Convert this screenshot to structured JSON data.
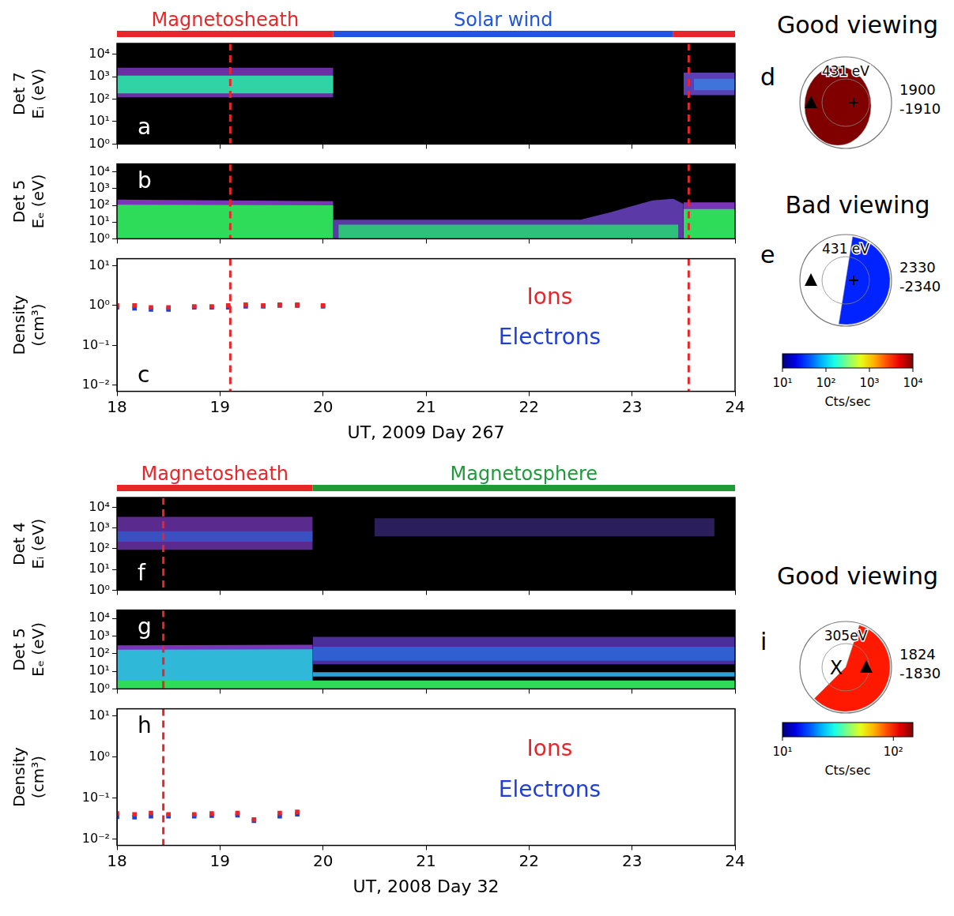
{
  "chart_data": [
    {
      "panel": "a",
      "type": "spectrogram",
      "ylabel": [
        "Det 7",
        "Eᵢ (eV)"
      ],
      "log": "y",
      "grid": false,
      "tick_labels": "y",
      "xlim": [
        18,
        24
      ],
      "xticks": [
        18,
        19,
        20,
        21,
        22,
        23,
        24
      ],
      "ylim": [
        1,
        30000
      ],
      "yticks": [
        {
          "value": 1,
          "label": "10⁰"
        },
        {
          "value": 10,
          "label": "10¹"
        },
        {
          "value": 100,
          "label": "10²"
        },
        {
          "value": 1000,
          "label": "10³"
        },
        {
          "value": 10000,
          "label": "10⁴"
        }
      ],
      "regions": [
        {
          "label": "Magnetosheath",
          "start": 18,
          "end": 20.1,
          "color": "#e8262a"
        },
        {
          "label": "Solar wind",
          "start": 20.1,
          "end": 23.4,
          "color": "#1f55e0"
        },
        {
          "label": null,
          "start": 23.4,
          "end": 24,
          "color": "#e8262a"
        }
      ],
      "vlines": [
        19.1,
        23.55
      ],
      "bands": [
        {
          "x": [
            18,
            20.1
          ],
          "low": [
            120,
            120
          ],
          "high": [
            2500,
            2500
          ],
          "color": "#6b2fa3"
        },
        {
          "x": [
            18,
            20.1
          ],
          "low": [
            180,
            180
          ],
          "high": [
            1100,
            1100
          ],
          "color": "#2fd3a5"
        },
        {
          "x": [
            23.5,
            24
          ],
          "low": [
            150,
            150
          ],
          "high": [
            1500,
            1500
          ],
          "color": "#5a3fb5"
        },
        {
          "x": [
            23.6,
            24
          ],
          "low": [
            250,
            250
          ],
          "high": [
            800,
            800
          ],
          "color": "#3f74d8"
        }
      ]
    },
    {
      "panel": "b",
      "type": "spectrogram",
      "ylabel": [
        "Det 5",
        "Eₑ (eV)"
      ],
      "log": "y",
      "grid": false,
      "tick_labels": "y",
      "xlim": [
        18,
        24
      ],
      "xticks": [
        18,
        19,
        20,
        21,
        22,
        23,
        24
      ],
      "ylim": [
        1,
        30000
      ],
      "yticks": [
        {
          "value": 1,
          "label": "10⁰"
        },
        {
          "value": 10,
          "label": "10¹"
        },
        {
          "value": 100,
          "label": "10²"
        },
        {
          "value": 1000,
          "label": "10³"
        },
        {
          "value": 10000,
          "label": "10⁴"
        }
      ],
      "vlines": [
        19.1,
        23.55
      ],
      "bands": [
        {
          "x": [
            18,
            20.1
          ],
          "low": [
            1,
            1
          ],
          "high": [
            220,
            180
          ],
          "color": "#7b35b8"
        },
        {
          "x": [
            18,
            20.1
          ],
          "low": [
            1,
            1
          ],
          "high": [
            110,
            100
          ],
          "color": "#2fdc5a"
        },
        {
          "x": [
            20.1,
            22.5,
            22.8,
            23.0,
            23.2,
            23.4,
            23.5
          ],
          "low": [
            1,
            1,
            1,
            1,
            1,
            1,
            1
          ],
          "high": [
            14,
            14,
            40,
            90,
            200,
            250,
            120
          ],
          "color": "#5b3aa8"
        },
        {
          "x": [
            20.15,
            23.45
          ],
          "low": [
            1,
            1
          ],
          "high": [
            7,
            7
          ],
          "color": "#2fc07a"
        },
        {
          "x": [
            23.5,
            24
          ],
          "low": [
            1,
            1
          ],
          "high": [
            150,
            150
          ],
          "color": "#7b35b8"
        },
        {
          "x": [
            23.5,
            24
          ],
          "low": [
            1,
            1
          ],
          "high": [
            60,
            60
          ],
          "color": "#2fdc5a"
        }
      ]
    },
    {
      "panel": "c",
      "type": "scatter",
      "ylabel": [
        "Density",
        "(cm³)"
      ],
      "xlabel": "UT, 2009 Day 267",
      "log": "y",
      "grid": false,
      "legend": "center",
      "marker": "square",
      "xlim": [
        18,
        24
      ],
      "xticks": [
        18,
        19,
        20,
        21,
        22,
        23,
        24
      ],
      "ylim": [
        0.007,
        15
      ],
      "yticks": [
        {
          "value": 0.01,
          "label": "10⁻²"
        },
        {
          "value": 0.1,
          "label": "10⁻¹"
        },
        {
          "value": 1,
          "label": "10⁰"
        },
        {
          "value": 10,
          "label": "10¹"
        }
      ],
      "vlines": [
        19.1,
        23.55
      ],
      "series": [
        {
          "name": "Ions",
          "color": "#e8262a",
          "x": [
            18.0,
            18.17,
            18.33,
            18.5,
            18.75,
            18.92,
            19.08,
            19.25,
            19.42,
            19.58,
            19.75,
            20.0
          ],
          "values": [
            1.0,
            1.0,
            0.9,
            0.9,
            0.95,
            0.95,
            1.0,
            1.05,
            1.0,
            1.05,
            1.05,
            1.0
          ]
        },
        {
          "name": "Electrons",
          "color": "#1f3fd6",
          "x": [
            18.0,
            18.17,
            18.33,
            18.5,
            18.75,
            18.92,
            19.08,
            19.25,
            19.42,
            19.58,
            19.75,
            20.0
          ],
          "values": [
            0.9,
            0.85,
            0.8,
            0.8,
            0.9,
            0.9,
            0.9,
            0.95,
            0.95,
            1.0,
            1.0,
            0.95
          ]
        }
      ]
    },
    {
      "panel": "f",
      "type": "spectrogram",
      "ylabel": [
        "Det 4",
        "Eᵢ (eV)"
      ],
      "log": "y",
      "grid": false,
      "tick_labels": "y",
      "xlim": [
        18,
        24
      ],
      "xticks": [
        18,
        19,
        20,
        21,
        22,
        23,
        24
      ],
      "ylim": [
        1,
        30000
      ],
      "yticks": [
        {
          "value": 1,
          "label": "10⁰"
        },
        {
          "value": 10,
          "label": "10¹"
        },
        {
          "value": 100,
          "label": "10²"
        },
        {
          "value": 1000,
          "label": "10³"
        },
        {
          "value": 10000,
          "label": "10⁴"
        }
      ],
      "regions": [
        {
          "label": "Magnetosheath",
          "start": 18,
          "end": 19.9,
          "color": "#e8262a"
        },
        {
          "label": "Magnetosphere",
          "start": 19.9,
          "end": 24,
          "color": "#1f9a3a"
        }
      ],
      "vlines": [
        18.45
      ],
      "bands": [
        {
          "x": [
            18,
            19.9
          ],
          "low": [
            90,
            90
          ],
          "high": [
            3500,
            3500
          ],
          "color": "#5b2a8f"
        },
        {
          "x": [
            18,
            19.9
          ],
          "low": [
            220,
            220
          ],
          "high": [
            700,
            700
          ],
          "color": "#3a4fc0"
        },
        {
          "x": [
            20.5,
            23.8
          ],
          "low": [
            400,
            400
          ],
          "high": [
            3000,
            3000
          ],
          "color": "#2a1f5a"
        }
      ]
    },
    {
      "panel": "g",
      "type": "spectrogram",
      "ylabel": [
        "Det 5",
        "Eₑ (eV)"
      ],
      "log": "y",
      "grid": false,
      "tick_labels": "y",
      "xlim": [
        18,
        24
      ],
      "xticks": [
        18,
        19,
        20,
        21,
        22,
        23,
        24
      ],
      "ylim": [
        1,
        30000
      ],
      "yticks": [
        {
          "value": 1,
          "label": "10⁰"
        },
        {
          "value": 10,
          "label": "10¹"
        },
        {
          "value": 100,
          "label": "10²"
        },
        {
          "value": 1000,
          "label": "10³"
        },
        {
          "value": 10000,
          "label": "10⁴"
        }
      ],
      "vlines": [
        18.45
      ],
      "bands": [
        {
          "x": [
            18,
            19.9
          ],
          "low": [
            1,
            1
          ],
          "high": [
            300,
            320
          ],
          "color": "#7b35b8"
        },
        {
          "x": [
            18,
            19.9
          ],
          "low": [
            1,
            1
          ],
          "high": [
            170,
            180
          ],
          "color": "#2fb8d8"
        },
        {
          "x": [
            19.9,
            24
          ],
          "low": [
            25,
            25
          ],
          "high": [
            900,
            900
          ],
          "color": "#4a2f9a"
        },
        {
          "x": [
            19.9,
            24
          ],
          "low": [
            40,
            40
          ],
          "high": [
            250,
            250
          ],
          "color": "#2f5fd0"
        },
        {
          "x": [
            19.9,
            24
          ],
          "low": [
            5,
            5
          ],
          "high": [
            9,
            9
          ],
          "color": "#2f9fd8"
        },
        {
          "x": [
            18,
            24
          ],
          "low": [
            1,
            1
          ],
          "high": [
            3,
            3
          ],
          "color": "#2fdc5a"
        }
      ]
    },
    {
      "panel": "h",
      "type": "scatter",
      "ylabel": [
        "Density",
        "(cm³)"
      ],
      "xlabel": "UT, 2008 Day 32",
      "log": "y",
      "grid": false,
      "legend": "center",
      "marker": "square",
      "xlim": [
        18,
        24
      ],
      "xticks": [
        18,
        19,
        20,
        21,
        22,
        23,
        24
      ],
      "ylim": [
        0.007,
        15
      ],
      "yticks": [
        {
          "value": 0.01,
          "label": "10⁻²"
        },
        {
          "value": 0.1,
          "label": "10⁻¹"
        },
        {
          "value": 1,
          "label": "10⁰"
        },
        {
          "value": 10,
          "label": "10¹"
        }
      ],
      "vlines": [
        18.45
      ],
      "series": [
        {
          "name": "Ions",
          "color": "#e8262a",
          "x": [
            18.0,
            18.17,
            18.33,
            18.5,
            18.75,
            18.92,
            19.17,
            19.33,
            19.58,
            19.75
          ],
          "values": [
            0.042,
            0.04,
            0.043,
            0.04,
            0.04,
            0.042,
            0.043,
            0.03,
            0.043,
            0.046
          ]
        },
        {
          "name": "Electrons",
          "color": "#1f3fd6",
          "x": [
            18.0,
            18.17,
            18.33,
            18.5,
            18.75,
            18.92,
            19.17,
            19.33,
            19.58,
            19.75
          ],
          "values": [
            0.035,
            0.034,
            0.036,
            0.036,
            0.036,
            0.037,
            0.038,
            0.028,
            0.036,
            0.04
          ]
        }
      ]
    }
  ],
  "sky_groups": [
    {
      "maps": [
        {
          "panel": "d",
          "title": "Good viewing",
          "energy": "431 eV",
          "time": [
            "1900",
            "-1910"
          ],
          "peak_counts": 10000
        },
        {
          "panel": "e",
          "title": "Bad viewing",
          "energy": "431 eV",
          "time": [
            "2330",
            "-2340"
          ],
          "peak_counts": 30
        }
      ],
      "colorbar": {
        "range": [
          10,
          10000
        ],
        "ticks": [
          {
            "value": 10,
            "label": "10¹"
          },
          {
            "value": 100,
            "label": "10²"
          },
          {
            "value": 1000,
            "label": "10³"
          },
          {
            "value": 10000,
            "label": "10⁴"
          }
        ],
        "label": "Cts/sec"
      }
    },
    {
      "maps": [
        {
          "panel": "i",
          "title": "Good viewing",
          "energy": "305eV",
          "time": [
            "1824",
            "-1830"
          ],
          "center_label": "X",
          "peak_counts": 100
        }
      ],
      "colorbar": {
        "range": [
          10,
          150
        ],
        "ticks": [
          {
            "value": 10,
            "label": "10¹"
          },
          {
            "value": 100,
            "label": "10²"
          }
        ],
        "label": "Cts/sec"
      }
    }
  ]
}
